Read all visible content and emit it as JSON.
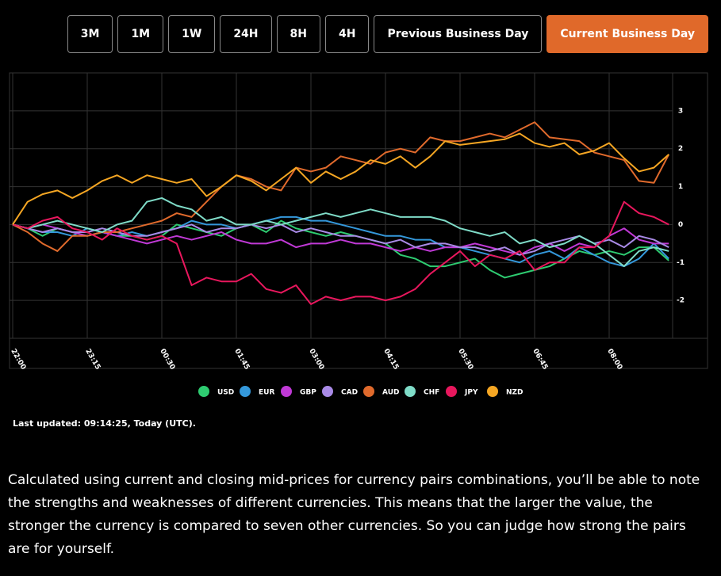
{
  "buttons": [
    {
      "label": "3M"
    },
    {
      "label": "1M"
    },
    {
      "label": "1W"
    },
    {
      "label": "24H"
    },
    {
      "label": "8H"
    },
    {
      "label": "4H"
    },
    {
      "label": "Previous Business Day"
    },
    {
      "label": "Current Business Day",
      "active": true
    }
  ],
  "chart_data": {
    "type": "line",
    "grid": true,
    "categories": [
      "22:00",
      null,
      null,
      null,
      null,
      "23:15",
      null,
      null,
      null,
      null,
      "00:30",
      null,
      null,
      null,
      null,
      "01:45",
      null,
      null,
      null,
      null,
      "03:00",
      null,
      null,
      null,
      null,
      "04:15",
      null,
      null,
      null,
      null,
      "05:30",
      null,
      null,
      null,
      null,
      "06:45",
      null,
      null,
      null,
      null,
      "08:00",
      null,
      null,
      null,
      null
    ],
    "ylim": [
      -3,
      4
    ],
    "yticks": [
      -2,
      -1,
      0,
      1,
      2,
      3
    ],
    "series": [
      {
        "name": "USD",
        "color": "#2ecc71",
        "values": [
          0,
          -0.1,
          -0.3,
          -0.1,
          -0.2,
          -0.3,
          -0.2,
          -0.3,
          -0.3,
          -0.4,
          -0.3,
          0,
          -0.1,
          -0.2,
          -0.3,
          -0.1,
          0,
          -0.2,
          0.1,
          -0.1,
          -0.2,
          -0.3,
          -0.2,
          -0.3,
          -0.4,
          -0.5,
          -0.8,
          -0.9,
          -1.1,
          -1.1,
          -1.0,
          -0.9,
          -1.2,
          -1.4,
          -1.3,
          -1.2,
          -1.1,
          -0.9,
          -0.7,
          -0.8,
          -0.7,
          -0.8,
          -0.6,
          -0.6,
          -0.95
        ]
      },
      {
        "name": "EUR",
        "color": "#3498db",
        "values": [
          0,
          -0.1,
          -0.2,
          -0.2,
          -0.3,
          -0.1,
          -0.2,
          -0.3,
          -0.2,
          -0.3,
          -0.2,
          -0.1,
          0.1,
          0,
          0,
          -0.1,
          0,
          0.1,
          0.2,
          0.2,
          0.1,
          0.1,
          0,
          -0.1,
          -0.2,
          -0.3,
          -0.3,
          -0.4,
          -0.4,
          -0.6,
          -0.6,
          -0.7,
          -0.8,
          -0.9,
          -1.0,
          -0.8,
          -0.7,
          -0.9,
          -0.6,
          -0.8,
          -1.0,
          -1.1,
          -0.9,
          -0.5,
          -0.9
        ]
      },
      {
        "name": "GBP",
        "color": "#c039d6",
        "values": [
          0,
          -0.1,
          0,
          -0.1,
          -0.2,
          -0.3,
          -0.2,
          -0.3,
          -0.4,
          -0.5,
          -0.4,
          -0.3,
          -0.4,
          -0.3,
          -0.2,
          -0.4,
          -0.5,
          -0.5,
          -0.4,
          -0.6,
          -0.5,
          -0.5,
          -0.4,
          -0.5,
          -0.5,
          -0.6,
          -0.7,
          -0.6,
          -0.7,
          -0.6,
          -0.6,
          -0.5,
          -0.6,
          -0.7,
          -0.8,
          -0.6,
          -0.5,
          -0.7,
          -0.5,
          -0.6,
          -0.3,
          -0.1,
          -0.4,
          -0.5,
          -0.5
        ]
      },
      {
        "name": "CAD",
        "color": "#a98ae6",
        "values": [
          0,
          -0.1,
          -0.2,
          -0.1,
          -0.2,
          -0.2,
          -0.1,
          -0.2,
          -0.3,
          -0.3,
          -0.2,
          -0.1,
          0,
          -0.2,
          -0.1,
          -0.1,
          0,
          -0.1,
          0,
          -0.2,
          -0.1,
          -0.2,
          -0.3,
          -0.3,
          -0.4,
          -0.5,
          -0.4,
          -0.6,
          -0.5,
          -0.5,
          -0.6,
          -0.6,
          -0.7,
          -0.6,
          -0.8,
          -0.7,
          -0.5,
          -0.4,
          -0.3,
          -0.5,
          -0.4,
          -0.6,
          -0.3,
          -0.4,
          -0.6
        ]
      },
      {
        "name": "AUD",
        "color": "#e06a2c",
        "values": [
          0,
          -0.2,
          -0.5,
          -0.7,
          -0.3,
          -0.3,
          -0.2,
          -0.2,
          -0.1,
          0,
          0.1,
          0.3,
          0.2,
          0.6,
          1.0,
          1.3,
          1.2,
          1.0,
          0.9,
          1.5,
          1.4,
          1.5,
          1.8,
          1.7,
          1.6,
          1.9,
          2.0,
          1.9,
          2.3,
          2.2,
          2.2,
          2.3,
          2.4,
          2.3,
          2.5,
          2.7,
          2.3,
          2.25,
          2.2,
          1.9,
          1.8,
          1.7,
          1.15,
          1.1,
          1.85
        ]
      },
      {
        "name": "CHF",
        "color": "#7fdcc8",
        "values": [
          0,
          -0.1,
          0,
          0.1,
          0,
          -0.1,
          -0.2,
          0,
          0.1,
          0.6,
          0.7,
          0.5,
          0.4,
          0.1,
          0.2,
          0,
          0,
          0.1,
          0,
          0.1,
          0.2,
          0.3,
          0.2,
          0.3,
          0.4,
          0.3,
          0.2,
          0.2,
          0.2,
          0.1,
          -0.1,
          -0.2,
          -0.3,
          -0.2,
          -0.5,
          -0.4,
          -0.6,
          -0.5,
          -0.3,
          -0.5,
          -0.8,
          -1.1,
          -0.7,
          -0.6,
          -0.7
        ]
      },
      {
        "name": "JPY",
        "color": "#e8175d",
        "values": [
          0,
          -0.1,
          0.1,
          0.2,
          -0.1,
          -0.2,
          -0.4,
          -0.1,
          -0.3,
          -0.4,
          -0.3,
          -0.5,
          -1.6,
          -1.4,
          -1.5,
          -1.5,
          -1.3,
          -1.7,
          -1.8,
          -1.6,
          -2.1,
          -1.9,
          -2.0,
          -1.9,
          -1.9,
          -2.0,
          -1.9,
          -1.7,
          -1.3,
          -1.0,
          -0.7,
          -1.1,
          -0.8,
          -0.9,
          -0.7,
          -1.2,
          -1.0,
          -1.0,
          -0.6,
          -0.6,
          -0.3,
          0.6,
          0.3,
          0.2,
          0
        ]
      },
      {
        "name": "NZD",
        "color": "#f5a623",
        "values": [
          0,
          0.6,
          0.8,
          0.9,
          0.7,
          0.9,
          1.15,
          1.3,
          1.1,
          1.3,
          1.2,
          1.1,
          1.2,
          0.75,
          1.0,
          1.3,
          1.15,
          0.9,
          1.2,
          1.5,
          1.1,
          1.4,
          1.2,
          1.4,
          1.7,
          1.6,
          1.8,
          1.5,
          1.8,
          2.2,
          2.1,
          2.15,
          2.2,
          2.25,
          2.4,
          2.15,
          2.05,
          2.15,
          1.85,
          1.95,
          2.15,
          1.75,
          1.4,
          1.5,
          1.85
        ]
      }
    ]
  },
  "last_updated": "Last updated: 09:14:25, Today (UTC).",
  "description": "Calculated using current and closing mid-prices for currency pairs combinations, you’ll be able to note the strengths and weaknesses of different currencies. This means that the larger the value, the stronger the currency is compared to seven other currencies. So you can judge how strong the pairs are for yourself."
}
